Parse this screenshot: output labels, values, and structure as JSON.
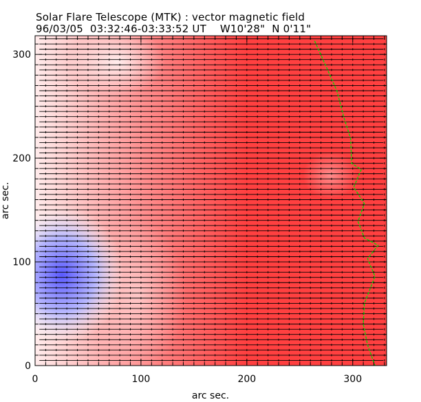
{
  "chart_data": {
    "type": "heatmap",
    "subtype": "vector magnetic field map with contour",
    "title": "Solar Flare Telescope (MTK) : vector magnetic field",
    "subtitle": "96/03/05  03:32:46-03:33:52 UT    W10'28\"  N 0'11\"",
    "xlabel": "arc sec.",
    "ylabel": "arc sec.",
    "xlim": [
      0,
      332
    ],
    "ylim": [
      0,
      318
    ],
    "xticks": [
      0,
      100,
      200,
      300
    ],
    "yticks": [
      0,
      100,
      200,
      300
    ],
    "xtick_labels": [
      "0",
      "100",
      "200",
      "300"
    ],
    "ytick_labels": [
      "0",
      "100",
      "200",
      "300"
    ],
    "colors": {
      "positive": "#ff3b3b",
      "negative": "#4a4aff",
      "neutral": "#ffffff",
      "contour": "#00dd00",
      "vectors": "#000000"
    },
    "contour": {
      "x": [
        264,
        275,
        285,
        292,
        298,
        299,
        308,
        301,
        311,
        305,
        311,
        324,
        314,
        321,
        311,
        310,
        314,
        321
      ],
      "y": [
        313,
        288,
        265,
        238,
        219,
        195,
        189,
        172,
        156,
        139,
        123,
        116,
        103,
        86,
        60,
        40,
        20,
        0
      ]
    },
    "vector_grid_spacing": 5
  }
}
